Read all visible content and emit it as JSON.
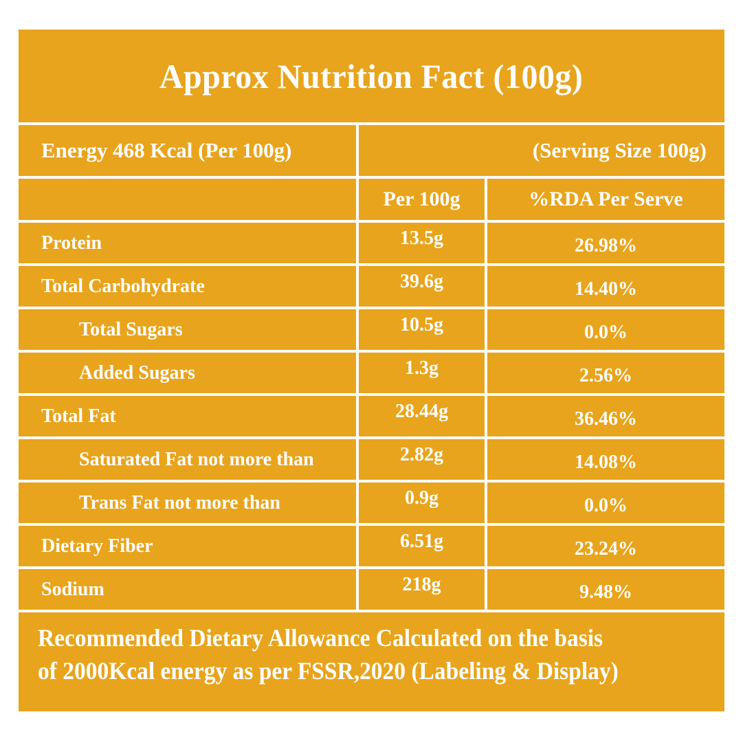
{
  "title": "Approx Nutrition Fact (100g)",
  "energy_row": {
    "left": "Energy 468 Kcal (Per 100g)",
    "right": "(Serving Size 100g)"
  },
  "columns": {
    "per100": "Per 100g",
    "rda": "%RDA Per Serve"
  },
  "rows": [
    {
      "label": "Protein",
      "indent": false,
      "per100": "13.5g",
      "rda": "26.98%"
    },
    {
      "label": "Total Carbohydrate",
      "indent": false,
      "per100": "39.6g",
      "rda": "14.40%"
    },
    {
      "label": "Total Sugars",
      "indent": true,
      "per100": "10.5g",
      "rda": "0.0%"
    },
    {
      "label": "Added Sugars",
      "indent": true,
      "per100": "1.3g",
      "rda": "2.56%"
    },
    {
      "label": "Total Fat",
      "indent": false,
      "per100": "28.44g",
      "rda": "36.46%"
    },
    {
      "label": "Saturated Fat not more than",
      "indent": true,
      "per100": "2.82g",
      "rda": "14.08%"
    },
    {
      "label": "Trans Fat not more than",
      "indent": true,
      "per100": "0.9g",
      "rda": "0.0%"
    },
    {
      "label": "Dietary Fiber",
      "indent": false,
      "per100": "6.51g",
      "rda": "23.24%"
    },
    {
      "label": "Sodium",
      "indent": false,
      "per100": "218g",
      "rda": "9.48%"
    }
  ],
  "footer": {
    "line1": "Recommended Dietary Allowance Calculated on the basis",
    "line2": "of 2000Kcal energy as per FSSR,2020 (Labeling & Display)"
  },
  "colors": {
    "table_bg": "#E8A41C",
    "text": "#FFFFFF",
    "page_bg": "#FFFFFF"
  }
}
